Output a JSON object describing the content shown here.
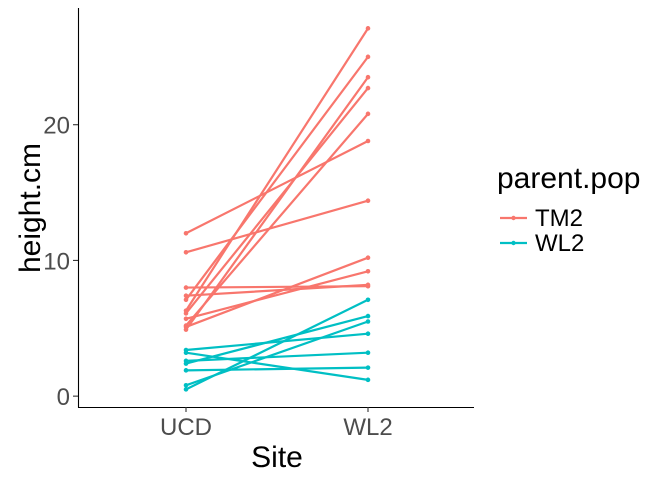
{
  "chart_data": {
    "type": "line",
    "xlabel": "Site",
    "ylabel": "height.cm",
    "categories": [
      "UCD",
      "WL2"
    ],
    "ylim": [
      -0.8,
      28.6
    ],
    "yticks": [
      0,
      10,
      20
    ],
    "grid": false,
    "legend": {
      "title": "parent.pop",
      "position": "right",
      "entries": [
        "TM2",
        "WL2"
      ]
    },
    "colors": {
      "TM2": "#f8766d",
      "WL2": "#00bfc4"
    },
    "series": [
      {
        "group": "TM2",
        "values": [
          12.0,
          18.8
        ]
      },
      {
        "group": "TM2",
        "values": [
          10.6,
          14.4
        ]
      },
      {
        "group": "TM2",
        "values": [
          8.0,
          8.1
        ]
      },
      {
        "group": "TM2",
        "values": [
          7.4,
          8.2
        ]
      },
      {
        "group": "TM2",
        "values": [
          7.1,
          25.0
        ]
      },
      {
        "group": "TM2",
        "values": [
          6.3,
          27.1
        ]
      },
      {
        "group": "TM2",
        "values": [
          6.1,
          22.7
        ]
      },
      {
        "group": "TM2",
        "values": [
          5.7,
          9.2
        ]
      },
      {
        "group": "TM2",
        "values": [
          5.2,
          20.8
        ]
      },
      {
        "group": "TM2",
        "values": [
          4.9,
          23.5
        ]
      },
      {
        "group": "TM2",
        "values": [
          5.1,
          10.2
        ]
      },
      {
        "group": "WL2",
        "values": [
          3.4,
          4.6
        ]
      },
      {
        "group": "WL2",
        "values": [
          3.2,
          1.2
        ]
      },
      {
        "group": "WL2",
        "values": [
          2.6,
          3.2
        ]
      },
      {
        "group": "WL2",
        "values": [
          2.4,
          5.9
        ]
      },
      {
        "group": "WL2",
        "values": [
          1.9,
          2.1
        ]
      },
      {
        "group": "WL2",
        "values": [
          0.8,
          5.5
        ]
      },
      {
        "group": "WL2",
        "values": [
          0.5,
          7.1
        ]
      }
    ]
  }
}
